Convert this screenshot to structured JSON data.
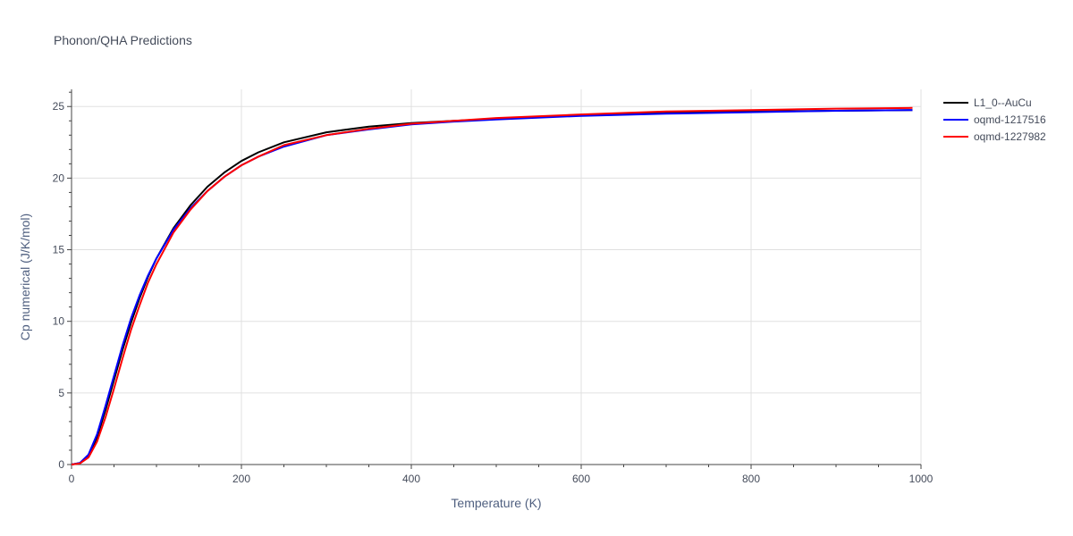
{
  "chart_data": {
    "type": "line",
    "title": "Phonon/QHA Predictions",
    "xlabel": "Temperature (K)",
    "ylabel": "Cp numerical (J/K/mol)",
    "xlim": [
      0,
      1000
    ],
    "ylim": [
      0,
      26.2
    ],
    "xticks": [
      0,
      200,
      400,
      600,
      800,
      1000
    ],
    "yticks": [
      0,
      5,
      10,
      15,
      20,
      25
    ],
    "grid": true,
    "legend_position": "top-right",
    "series": [
      {
        "name": "L1_0--AuCu",
        "color": "#000000",
        "x": [
          0,
          10,
          20,
          30,
          40,
          50,
          60,
          70,
          80,
          90,
          100,
          120,
          140,
          160,
          180,
          200,
          220,
          250,
          300,
          350,
          400,
          450,
          500,
          600,
          700,
          800,
          900,
          990
        ],
        "y": [
          0,
          0.1,
          0.6,
          1.9,
          3.8,
          5.9,
          8.0,
          9.9,
          11.6,
          13.1,
          14.4,
          16.5,
          18.1,
          19.4,
          20.4,
          21.2,
          21.8,
          22.5,
          23.2,
          23.6,
          23.85,
          24.0,
          24.15,
          24.4,
          24.55,
          24.65,
          24.7,
          24.75
        ]
      },
      {
        "name": "oqmd-1217516",
        "color": "#0000ff",
        "x": [
          0,
          10,
          20,
          30,
          40,
          50,
          60,
          70,
          80,
          90,
          100,
          120,
          140,
          160,
          180,
          200,
          220,
          250,
          300,
          350,
          400,
          450,
          500,
          600,
          700,
          800,
          900,
          990
        ],
        "y": [
          0,
          0.12,
          0.7,
          2.1,
          4.1,
          6.2,
          8.3,
          10.2,
          11.8,
          13.2,
          14.4,
          16.4,
          17.9,
          19.1,
          20.1,
          20.9,
          21.5,
          22.2,
          23.0,
          23.4,
          23.75,
          23.95,
          24.1,
          24.35,
          24.5,
          24.6,
          24.7,
          24.75
        ]
      },
      {
        "name": "oqmd-1227982",
        "color": "#ff0000",
        "x": [
          0,
          10,
          20,
          30,
          40,
          50,
          60,
          70,
          80,
          90,
          100,
          120,
          140,
          160,
          180,
          200,
          220,
          250,
          300,
          350,
          400,
          450,
          500,
          600,
          700,
          800,
          900,
          990
        ],
        "y": [
          0,
          0.08,
          0.5,
          1.6,
          3.3,
          5.3,
          7.4,
          9.4,
          11.1,
          12.7,
          14.0,
          16.2,
          17.8,
          19.1,
          20.1,
          20.9,
          21.5,
          22.3,
          23.0,
          23.45,
          23.8,
          24.0,
          24.2,
          24.45,
          24.65,
          24.75,
          24.85,
          24.9
        ]
      }
    ]
  }
}
